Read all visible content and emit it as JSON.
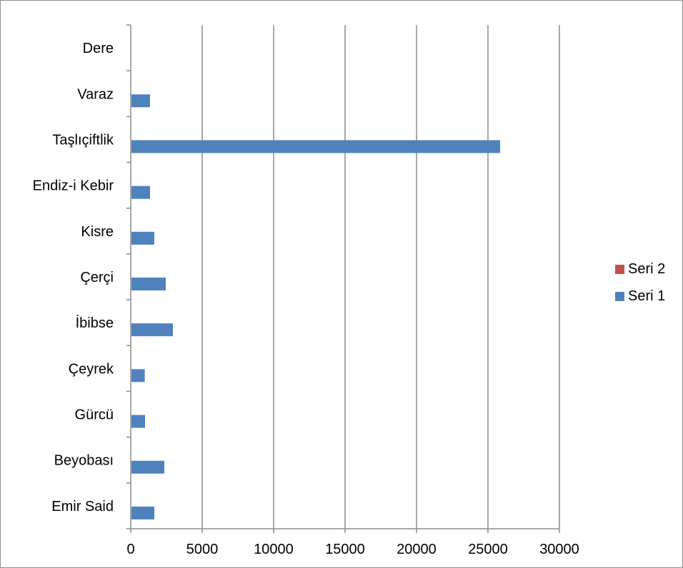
{
  "chart_data": {
    "type": "bar",
    "orientation": "horizontal",
    "categories": [
      "Emir Said",
      "Beyobası",
      "Gürcü",
      "Çeyrek",
      "İbibse",
      "Çerçi",
      "Kisre",
      "Endiz-i Kebir",
      "Taşlıçiftlik",
      "Varaz",
      "Dere"
    ],
    "series": [
      {
        "name": "Seri 1",
        "color": "#4F81BD",
        "values": [
          1600,
          2300,
          950,
          930,
          2900,
          2400,
          1600,
          1300,
          25800,
          1300,
          0
        ]
      },
      {
        "name": "Seri 2",
        "color": "#C0504D",
        "values": [
          0,
          0,
          0,
          0,
          0,
          0,
          0,
          0,
          0,
          0,
          0
        ]
      }
    ],
    "xlim": [
      0,
      30000
    ],
    "x_ticks": [
      "0",
      "5000",
      "10000",
      "15000",
      "20000",
      "25000",
      "30000"
    ],
    "grid": "vertical",
    "legend": {
      "position": "right",
      "order": [
        "Seri 2",
        "Seri 1"
      ]
    },
    "title": "",
    "xlabel": "",
    "ylabel": ""
  }
}
